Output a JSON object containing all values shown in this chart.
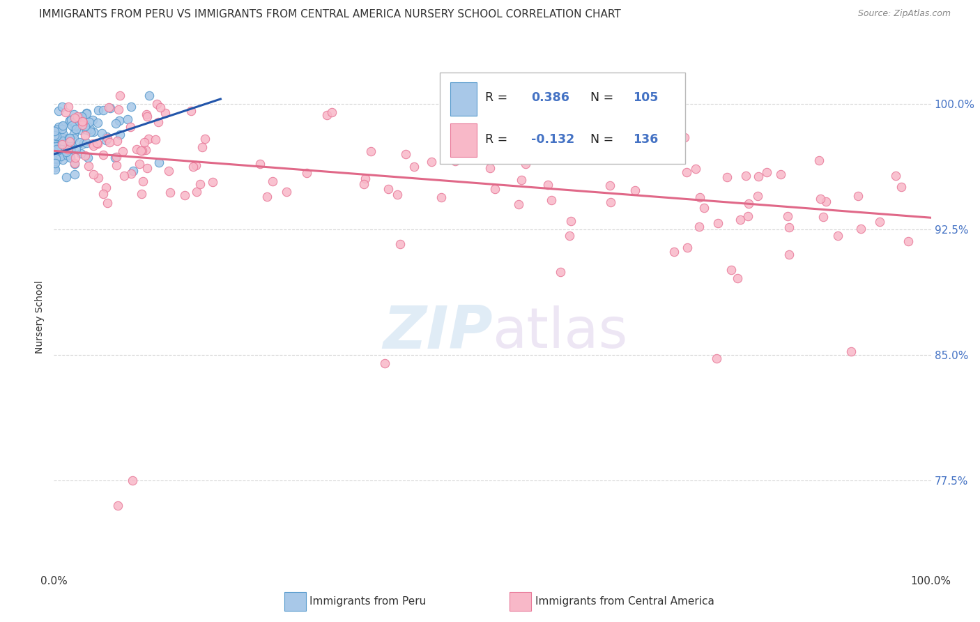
{
  "title": "IMMIGRANTS FROM PERU VS IMMIGRANTS FROM CENTRAL AMERICA NURSERY SCHOOL CORRELATION CHART",
  "source": "Source: ZipAtlas.com",
  "ylabel": "Nursery School",
  "ytick_labels": [
    "100.0%",
    "92.5%",
    "85.0%",
    "77.5%"
  ],
  "ytick_values": [
    1.0,
    0.925,
    0.85,
    0.775
  ],
  "legend_blue_R_val": "0.386",
  "legend_blue_N_val": "105",
  "legend_pink_R_val": "-0.132",
  "legend_pink_N_val": "136",
  "legend_label_blue": "Immigrants from Peru",
  "legend_label_pink": "Immigrants from Central America",
  "blue_scatter_color": "#a8c8e8",
  "blue_edge_color": "#5599cc",
  "blue_line_color": "#2255aa",
  "pink_scatter_color": "#f8b8c8",
  "pink_edge_color": "#e87898",
  "pink_line_color": "#e06888",
  "watermark_zip": "#c8ddf0",
  "watermark_atlas": "#d8c8e8",
  "background_color": "#ffffff",
  "grid_color": "#cccccc",
  "title_color": "#333333",
  "right_tick_color": "#4472c4",
  "blue_R": 0.386,
  "pink_R": -0.132,
  "blue_line_x": [
    0.0,
    0.19
  ],
  "blue_line_y": [
    0.97,
    1.003
  ],
  "pink_line_x": [
    0.0,
    1.0
  ],
  "pink_line_y": [
    0.972,
    0.932
  ],
  "xlim": [
    0.0,
    1.0
  ],
  "ylim": [
    0.72,
    1.025
  ]
}
